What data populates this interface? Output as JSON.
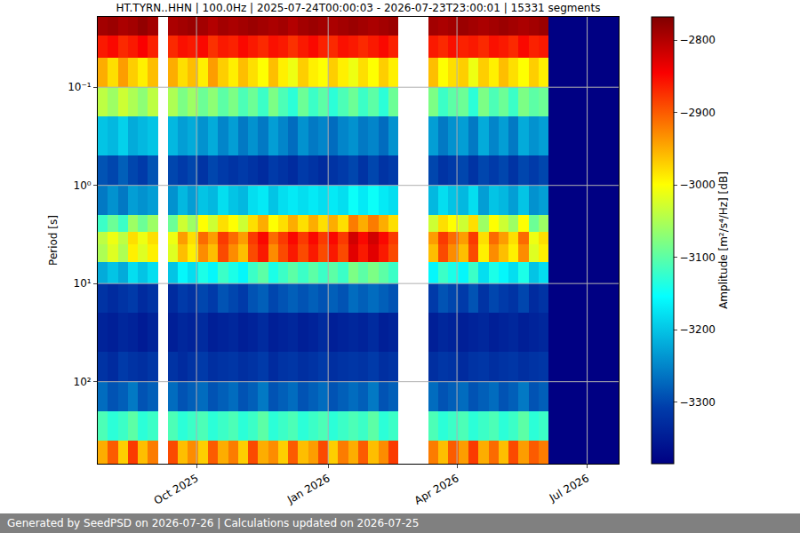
{
  "chart_data": {
    "type": "heatmap",
    "title": "HT.TYRN..HHN | 100.0Hz | 2025-07-24T00:00:03 - 2026-07-23T23:00:01 | 15331 segments",
    "y_label": "Period [s]",
    "footer": "Generated by SeedPSD on 2026-07-26 | Calculations updated on 2026-07-25",
    "log": "y",
    "grid": true,
    "xlim": [
      "2025-07-24",
      "2026-07-23"
    ],
    "xticks": [
      {
        "value": "2025-10-01",
        "label": "Oct 2025"
      },
      {
        "value": "2026-01-01",
        "label": "Jan 2026"
      },
      {
        "value": "2026-04-01",
        "label": "Apr 2026"
      },
      {
        "value": "2026-07-01",
        "label": "Jul 2026"
      }
    ],
    "ylim": [
      0.0192,
      685
    ],
    "yticks": [
      {
        "value": 0.1,
        "label": "10⁻¹"
      },
      {
        "value": 1,
        "label": "10⁰"
      },
      {
        "value": 10,
        "label": "10¹"
      },
      {
        "value": 100,
        "label": "10²"
      }
    ],
    "colorbar": {
      "title": "Amplitude [m²/s⁴/Hz] [dB]",
      "range": [
        -3385,
        -2768
      ],
      "ticks": [
        -3300,
        -3200,
        -3100,
        -3000,
        -2900,
        -2800
      ]
    },
    "x": [
      "2025-07-24",
      "2025-07-31",
      "2025-08-07",
      "2025-08-14",
      "2025-08-21",
      "2025-08-28",
      "2025-09-04",
      "2025-09-11",
      "2025-09-18",
      "2025-09-25",
      "2025-10-02",
      "2025-10-09",
      "2025-10-16",
      "2025-10-23",
      "2025-10-30",
      "2025-11-06",
      "2025-11-13",
      "2025-11-20",
      "2025-11-27",
      "2025-12-04",
      "2025-12-11",
      "2025-12-18",
      "2025-12-25",
      "2026-01-01",
      "2026-01-08",
      "2026-01-15",
      "2026-01-22",
      "2026-01-29",
      "2026-02-05",
      "2026-02-12",
      "2026-02-19",
      "2026-02-26",
      "2026-03-05",
      "2026-03-12",
      "2026-03-19",
      "2026-03-26",
      "2026-04-02",
      "2026-04-09",
      "2026-04-16",
      "2026-04-23",
      "2026-04-30",
      "2026-05-07",
      "2026-05-14",
      "2026-05-21",
      "2026-05-28",
      "2026-06-04",
      "2026-06-11",
      "2026-06-18",
      "2026-06-25",
      "2026-07-02",
      "2026-07-09",
      "2026-07-16",
      "2026-07-23"
    ],
    "y": [
      0.0192,
      0.03,
      0.05,
      0.1,
      0.2,
      0.5,
      1,
      2,
      3,
      4,
      6,
      10,
      20,
      50,
      100,
      200,
      400,
      685
    ],
    "z": [
      [
        -2790,
        -2785,
        -2795,
        -2790,
        -2780,
        -2790,
        null,
        -2795,
        -2790,
        -2785,
        -2790,
        -2800,
        -2790,
        -2795,
        -2790,
        -2785,
        -2790,
        -2795,
        -2790,
        -2800,
        -2790,
        -2785,
        -2790,
        -2795,
        -2790,
        -2785,
        -2790,
        -2795,
        -2790,
        -2785,
        null,
        null,
        null,
        -2790,
        -2795,
        -2790,
        -2785,
        -2790,
        -2795,
        -2790,
        -2785,
        -2790,
        -2795,
        -2790,
        -2785,
        -3385,
        -3385,
        -3385,
        -3385,
        -3385,
        -3385,
        -3385
      ],
      [
        -2860,
        -2850,
        -2870,
        -2860,
        -2845,
        -2865,
        null,
        -2870,
        -2855,
        -2860,
        -2850,
        -2875,
        -2860,
        -2865,
        -2850,
        -2860,
        -2870,
        -2855,
        -2860,
        -2875,
        -2860,
        -2850,
        -2865,
        -2870,
        -2855,
        -2860,
        -2870,
        -2860,
        -2850,
        -2865,
        null,
        null,
        null,
        -2860,
        -2870,
        -2855,
        -2865,
        -2860,
        -2870,
        -2855,
        -2860,
        -2870,
        -2850,
        -2865,
        -2860,
        -3385,
        -3385,
        -3385,
        -3385,
        -3385,
        -3385,
        -3385
      ],
      [
        -2950,
        -2980,
        -2940,
        -2970,
        -2990,
        -2960,
        null,
        -2950,
        -2980,
        -2960,
        -2990,
        -2940,
        -2970,
        -2990,
        -2960,
        -2980,
        -3000,
        -2960,
        -2990,
        -3010,
        -2970,
        -2990,
        -3000,
        -2970,
        -2990,
        -3010,
        -2980,
        -3000,
        -2970,
        -2990,
        null,
        null,
        null,
        -2960,
        -3000,
        -2980,
        -2970,
        -3010,
        -2970,
        -2990,
        -2960,
        -2980,
        -3000,
        -2970,
        -2990,
        -3385,
        -3385,
        -3385,
        -3385,
        -3385,
        -3385,
        -3385
      ],
      [
        -3040,
        -3060,
        -3030,
        -3050,
        -3070,
        -3040,
        null,
        -3050,
        -3080,
        -3060,
        -3090,
        -3070,
        -3100,
        -3080,
        -3110,
        -3090,
        -3120,
        -3080,
        -3110,
        -3130,
        -3090,
        -3120,
        -3100,
        -3130,
        -3110,
        -3090,
        -3120,
        -3100,
        -3130,
        -3090,
        null,
        null,
        null,
        -3080,
        -3120,
        -3100,
        -3090,
        -3130,
        -3080,
        -3110,
        -3090,
        -3120,
        -3080,
        -3100,
        -3090,
        -3385,
        -3385,
        -3385,
        -3385,
        -3385,
        -3385,
        -3385
      ],
      [
        -3200,
        -3210,
        -3190,
        -3220,
        -3210,
        -3200,
        null,
        -3210,
        -3230,
        -3220,
        -3240,
        -3220,
        -3250,
        -3230,
        -3260,
        -3240,
        -3260,
        -3230,
        -3250,
        -3270,
        -3240,
        -3260,
        -3250,
        -3270,
        -3250,
        -3240,
        -3260,
        -3250,
        -3270,
        -3240,
        null,
        null,
        null,
        -3230,
        -3260,
        -3240,
        -3230,
        -3260,
        -3220,
        -3250,
        -3230,
        -3260,
        -3220,
        -3240,
        -3230,
        -3385,
        -3385,
        -3385,
        -3385,
        -3385,
        -3385,
        -3385
      ],
      [
        -3290,
        -3300,
        -3280,
        -3300,
        -3310,
        -3290,
        null,
        -3300,
        -3310,
        -3300,
        -3320,
        -3300,
        -3310,
        -3320,
        -3310,
        -3320,
        -3330,
        -3310,
        -3320,
        -3330,
        -3310,
        -3320,
        -3330,
        -3320,
        -3310,
        -3300,
        -3320,
        -3300,
        -3320,
        -3310,
        null,
        null,
        null,
        -3300,
        -3320,
        -3310,
        -3300,
        -3320,
        -3300,
        -3310,
        -3300,
        -3320,
        -3300,
        -3310,
        -3300,
        -3385,
        -3385,
        -3385,
        -3385,
        -3385,
        -3385,
        -3385
      ],
      [
        -3260,
        -3240,
        -3260,
        -3230,
        -3240,
        -3230,
        null,
        -3240,
        -3210,
        -3230,
        -3200,
        -3210,
        -3180,
        -3200,
        -3210,
        -3180,
        -3170,
        -3200,
        -3180,
        -3170,
        -3180,
        -3170,
        -3180,
        -3170,
        -3180,
        -3150,
        -3170,
        -3150,
        -3170,
        -3180,
        null,
        null,
        null,
        -3210,
        -3180,
        -3200,
        -3210,
        -3180,
        -3230,
        -3200,
        -3210,
        -3230,
        -3200,
        -3240,
        -3230,
        -3385,
        -3385,
        -3385,
        -3385,
        -3385,
        -3385,
        -3385
      ],
      [
        -3120,
        -3090,
        -3120,
        -3060,
        -3090,
        -3060,
        null,
        -3090,
        -3030,
        -3060,
        -3000,
        -3030,
        -2980,
        -3000,
        -3030,
        -2980,
        -2950,
        -3000,
        -2980,
        -2950,
        -2980,
        -2950,
        -2980,
        -2950,
        -2980,
        -2920,
        -2950,
        -2920,
        -2950,
        -2980,
        null,
        null,
        null,
        -3030,
        -2980,
        -3000,
        -3030,
        -2980,
        -3060,
        -3000,
        -3030,
        -3060,
        -3000,
        -3090,
        -3060,
        -3385,
        -3385,
        -3385,
        -3385,
        -3385,
        -3385,
        -3385
      ],
      [
        -3040,
        -3010,
        -3040,
        -2980,
        -3010,
        -2980,
        null,
        -3010,
        -2940,
        -2980,
        -2910,
        -2940,
        -2880,
        -2910,
        -2940,
        -2880,
        -2850,
        -2910,
        -2880,
        -2850,
        -2880,
        -2850,
        -2880,
        -2850,
        -2880,
        -2820,
        -2850,
        -2820,
        -2850,
        -2880,
        null,
        null,
        null,
        -2940,
        -2880,
        -2910,
        -2940,
        -2880,
        -2980,
        -2910,
        -2940,
        -2980,
        -2910,
        -3010,
        -2980,
        -3385,
        -3385,
        -3385,
        -3385,
        -3385,
        -3385,
        -3385
      ],
      [
        -3050,
        -3020,
        -3050,
        -2990,
        -3020,
        -2990,
        null,
        -3020,
        -2960,
        -2990,
        -2930,
        -2960,
        -2890,
        -2930,
        -2960,
        -2890,
        -2860,
        -2930,
        -2890,
        -2860,
        -2890,
        -2860,
        -2890,
        -2860,
        -2890,
        -2830,
        -2860,
        -2830,
        -2860,
        -2890,
        null,
        null,
        null,
        -2960,
        -2890,
        -2930,
        -2960,
        -2890,
        -2990,
        -2930,
        -2960,
        -2990,
        -2930,
        -3020,
        -2990,
        -3385,
        -3385,
        -3385,
        -3385,
        -3385,
        -3385,
        -3385
      ],
      [
        -3220,
        -3200,
        -3220,
        -3180,
        -3200,
        -3180,
        null,
        -3200,
        -3160,
        -3180,
        -3140,
        -3160,
        -3120,
        -3140,
        -3160,
        -3120,
        -3100,
        -3140,
        -3120,
        -3100,
        -3120,
        -3100,
        -3120,
        -3100,
        -3120,
        -3080,
        -3100,
        -3080,
        -3100,
        -3120,
        null,
        null,
        null,
        -3160,
        -3120,
        -3140,
        -3160,
        -3120,
        -3180,
        -3140,
        -3160,
        -3180,
        -3140,
        -3200,
        -3180,
        -3385,
        -3385,
        -3385,
        -3385,
        -3385,
        -3385,
        -3385
      ],
      [
        -3320,
        -3330,
        -3320,
        -3310,
        -3330,
        -3320,
        null,
        -3330,
        -3310,
        -3320,
        -3300,
        -3310,
        -3290,
        -3300,
        -3310,
        -3290,
        -3280,
        -3300,
        -3290,
        -3280,
        -3290,
        -3280,
        -3290,
        -3280,
        -3290,
        -3270,
        -3280,
        -3270,
        -3280,
        -3290,
        null,
        null,
        null,
        -3310,
        -3290,
        -3300,
        -3310,
        -3290,
        -3320,
        -3300,
        -3310,
        -3320,
        -3300,
        -3330,
        -3320,
        -3385,
        -3385,
        -3385,
        -3385,
        -3385,
        -3385,
        -3385
      ],
      [
        -3340,
        -3345,
        -3335,
        -3340,
        -3350,
        -3340,
        null,
        -3345,
        -3335,
        -3340,
        -3330,
        -3345,
        -3340,
        -3335,
        -3345,
        -3340,
        -3330,
        -3345,
        -3340,
        -3335,
        -3345,
        -3340,
        -3330,
        -3345,
        -3340,
        -3335,
        -3340,
        -3330,
        -3345,
        -3340,
        null,
        null,
        null,
        -3345,
        -3335,
        -3340,
        -3345,
        -3340,
        -3335,
        -3345,
        -3340,
        -3335,
        -3345,
        -3340,
        -3335,
        -3385,
        -3385,
        -3385,
        -3385,
        -3385,
        -3385,
        -3385
      ],
      [
        -3320,
        -3330,
        -3310,
        -3320,
        -3325,
        -3315,
        null,
        -3320,
        -3330,
        -3320,
        -3310,
        -3325,
        -3320,
        -3315,
        -3325,
        -3320,
        -3310,
        -3330,
        -3320,
        -3315,
        -3325,
        -3320,
        -3310,
        -3325,
        -3320,
        -3315,
        -3320,
        -3310,
        -3325,
        -3320,
        null,
        null,
        null,
        -3325,
        -3315,
        -3320,
        -3330,
        -3320,
        -3315,
        -3325,
        -3320,
        -3315,
        -3325,
        -3320,
        -3315,
        -3385,
        -3385,
        -3385,
        -3385,
        -3385,
        -3385,
        -3385
      ],
      [
        -3270,
        -3290,
        -3280,
        -3260,
        -3290,
        -3280,
        null,
        -3270,
        -3290,
        -3280,
        -3270,
        -3290,
        -3280,
        -3270,
        -3290,
        -3280,
        -3260,
        -3290,
        -3280,
        -3270,
        -3290,
        -3280,
        -3270,
        -3290,
        -3280,
        -3270,
        -3280,
        -3260,
        -3290,
        -3280,
        null,
        null,
        null,
        -3270,
        -3290,
        -3280,
        -3270,
        -3290,
        -3280,
        -3270,
        -3290,
        -3280,
        -3260,
        -3290,
        -3280,
        -3385,
        -3385,
        -3385,
        -3385,
        -3385,
        -3385,
        -3385
      ],
      [
        -3110,
        -3130,
        -3120,
        -3100,
        -3130,
        -3120,
        null,
        -3110,
        -3130,
        -3120,
        -3110,
        -3130,
        -3120,
        -3110,
        -3130,
        -3120,
        -3100,
        -3130,
        -3120,
        -3110,
        -3130,
        -3120,
        -3110,
        -3130,
        -3120,
        -3110,
        -3120,
        -3100,
        -3130,
        -3120,
        null,
        null,
        null,
        -3110,
        -3130,
        -3120,
        -3110,
        -3130,
        -3120,
        -3110,
        -3130,
        -3120,
        -3100,
        -3130,
        -3120,
        -3385,
        -3385,
        -3385,
        -3385,
        -3385,
        -3385,
        -3385
      ],
      [
        -2950,
        -2900,
        -2970,
        -2880,
        -2960,
        -2920,
        null,
        -2890,
        -2960,
        -2930,
        -2970,
        -2900,
        -2950,
        -2920,
        -2970,
        -2890,
        -2950,
        -2930,
        -2970,
        -2900,
        -2960,
        -2940,
        -2890,
        -2970,
        -2920,
        -2950,
        -2900,
        -2960,
        -2930,
        -2880,
        null,
        null,
        null,
        -2920,
        -2960,
        -2900,
        -2940,
        -2880,
        -2950,
        -2910,
        -2960,
        -2890,
        -2940,
        -2900,
        -2920,
        -3385,
        -3385,
        -3385,
        -3385,
        -3385,
        -3385,
        -3385
      ]
    ]
  }
}
